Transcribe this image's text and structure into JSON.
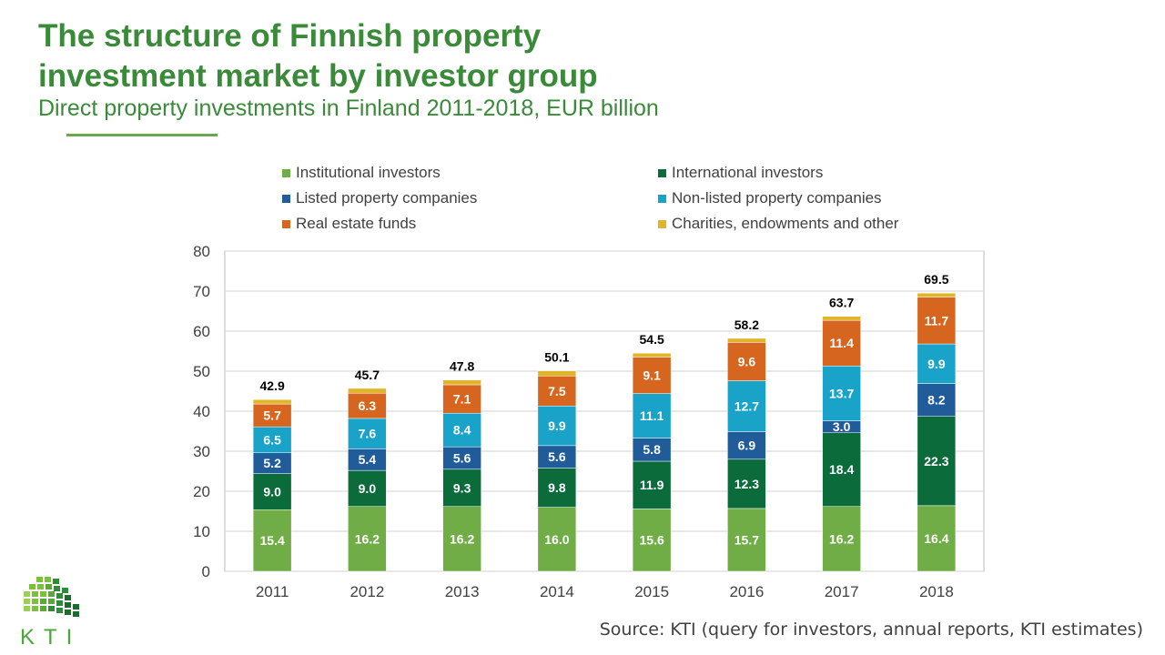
{
  "header": {
    "title_line1": "The structure of Finnish property",
    "title_line2": "investment market by investor group",
    "subtitle": "Direct property investments in Finland 2011-2018, EUR billion"
  },
  "source": "Source: KTI (query for investors, annual reports, KTI estimates)",
  "logo": {
    "text": "KTI"
  },
  "colors": {
    "title": "#3a8a3a",
    "institutional": "#70ad47",
    "international": "#0b6b3a",
    "listed": "#1f5c99",
    "nonlisted": "#1aa3c9",
    "funds": "#d6651f",
    "charities": "#e0b52a"
  },
  "chart_data": {
    "type": "bar",
    "stacked": true,
    "categories": [
      "2011",
      "2012",
      "2013",
      "2014",
      "2015",
      "2016",
      "2017",
      "2018"
    ],
    "ylim": [
      0,
      80
    ],
    "yticks": [
      0,
      10,
      20,
      30,
      40,
      50,
      60,
      70,
      80
    ],
    "grid": true,
    "legend_position": "top",
    "series": [
      {
        "name": "Institutional investors",
        "key": "institutional",
        "values": [
          15.4,
          16.2,
          16.2,
          16.0,
          15.6,
          15.7,
          16.2,
          16.4
        ],
        "labels": [
          "15.4",
          "16.2",
          "16.2",
          "16.0",
          "15.6",
          "15.7",
          "16.2",
          "16.4"
        ]
      },
      {
        "name": "International investors",
        "key": "international",
        "values": [
          9.0,
          9.0,
          9.3,
          9.8,
          11.9,
          12.3,
          18.4,
          22.3
        ],
        "labels": [
          "9.0",
          "9.0",
          "9.3",
          "9.8",
          "11.9",
          "12.3",
          "18.4",
          "22.3"
        ]
      },
      {
        "name": "Listed property companies",
        "key": "listed",
        "values": [
          5.2,
          5.4,
          5.6,
          5.6,
          5.8,
          6.9,
          3.0,
          8.2
        ],
        "labels": [
          "5.2",
          "5.4",
          "5.6",
          "5.6",
          "5.8",
          "6.9",
          "3.0",
          "8.2"
        ]
      },
      {
        "name": "Non-listed property companies",
        "key": "nonlisted",
        "values": [
          6.5,
          7.6,
          8.4,
          9.9,
          11.1,
          12.7,
          13.7,
          9.9
        ],
        "labels": [
          "6.5",
          "7.6",
          "8.4",
          "9.9",
          "11.1",
          "12.7",
          "13.7",
          "9.9"
        ]
      },
      {
        "name": "Real estate funds",
        "key": "funds",
        "values": [
          5.7,
          6.3,
          7.1,
          7.5,
          9.1,
          9.6,
          11.4,
          11.7
        ],
        "labels": [
          "5.7",
          "6.3",
          "7.1",
          "7.5",
          "9.1",
          "9.6",
          "11.4",
          "11.7"
        ]
      },
      {
        "name": "Charities, endowments and other",
        "key": "charities",
        "values": [
          1.1,
          1.2,
          1.2,
          1.3,
          1.0,
          1.0,
          1.0,
          1.0
        ]
      }
    ],
    "totals": [
      "42.9",
      "45.7",
      "47.8",
      "50.1",
      "54.5",
      "58.2",
      "63.7",
      "69.5"
    ]
  }
}
